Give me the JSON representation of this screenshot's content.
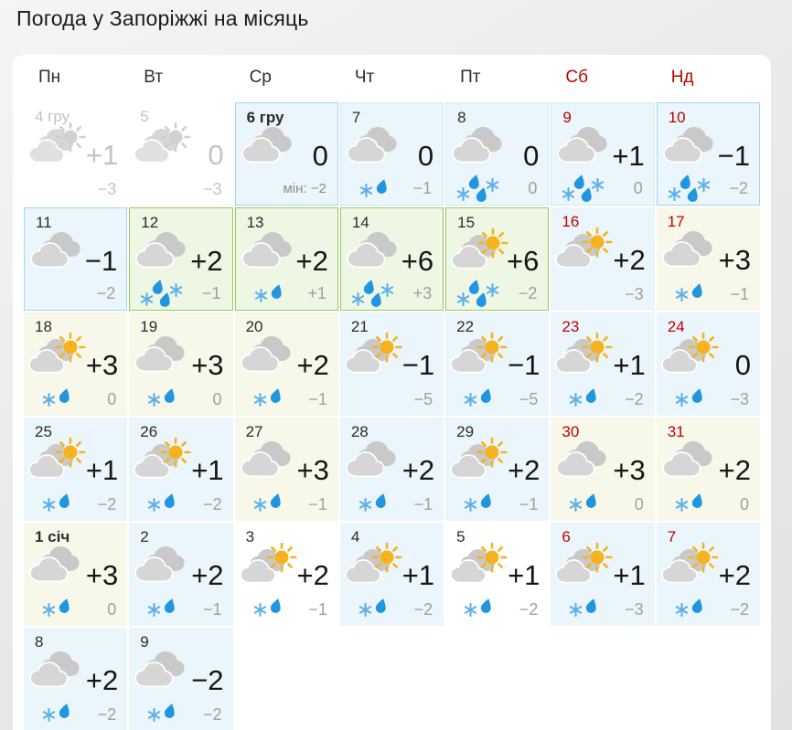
{
  "title": "Погода у Запоріжжі на місяць",
  "colors": {
    "red": "#c00000",
    "title_text": "#1b1b1b",
    "day_text": "#2b2b2b",
    "temp_text": "#151515",
    "night_text": "#9f9f9f",
    "past_text": "#c3c3c3",
    "cell_blue": "#eaf5fc",
    "cell_green": "#eef7e4",
    "cell_cream": "#f8f8ea",
    "bd_blue": "#9fd6ef",
    "bd_blue_light": "#cfe9f6",
    "bd_green": "#94ca5e",
    "sun_yellow": "#f6b31d",
    "sun_gray": "#d0d0d0",
    "cloud_back": "#c9c9c9",
    "cloud_front": "#d6d6d6",
    "cloud_back_past": "#d7d7d7",
    "cloud_front_past": "#e0e0e0",
    "snow_blue": "#5db0e8",
    "rain_blue": "#2196e0"
  },
  "calendar": {
    "weekdays": [
      {
        "label": "Пн",
        "weekend": false
      },
      {
        "label": "Вт",
        "weekend": false
      },
      {
        "label": "Ср",
        "weekend": false
      },
      {
        "label": "Чт",
        "weekend": false
      },
      {
        "label": "Пт",
        "weekend": false
      },
      {
        "label": "Сб",
        "weekend": true
      },
      {
        "label": "Нд",
        "weekend": true
      }
    ],
    "cells": [
      {
        "day": "4 гру",
        "past": true,
        "icon": "sun-cloud",
        "precip": "none",
        "temp_day": "+1",
        "temp_night": "−3",
        "bg": "white"
      },
      {
        "day": "5",
        "past": true,
        "icon": "sun-cloud",
        "precip": "none",
        "temp_day": "0",
        "temp_night": "−3",
        "bg": "white"
      },
      {
        "day": "6 гру",
        "bold": true,
        "icon": "clouds",
        "precip": "none",
        "temp_day": "0",
        "temp_night": "−2",
        "night_prefix": "мін: ",
        "bg": "blue",
        "border": "blue"
      },
      {
        "day": "7",
        "icon": "clouds",
        "precip": "light",
        "temp_day": "0",
        "temp_night": "−1",
        "bg": "blue",
        "border": "blue-light"
      },
      {
        "day": "8",
        "icon": "clouds",
        "precip": "heavy",
        "temp_day": "0",
        "temp_night": "0",
        "bg": "blue",
        "border": "blue-light"
      },
      {
        "day": "9",
        "weekend": true,
        "icon": "clouds",
        "precip": "heavy",
        "temp_day": "+1",
        "temp_night": "0",
        "bg": "blue",
        "border": "blue-light"
      },
      {
        "day": "10",
        "weekend": true,
        "icon": "clouds",
        "precip": "heavy",
        "temp_day": "−1",
        "temp_night": "−2",
        "bg": "blue",
        "border": "blue"
      },
      {
        "day": "11",
        "icon": "clouds",
        "precip": "none",
        "temp_day": "−1",
        "temp_night": "−2",
        "bg": "blue",
        "border": "blue"
      },
      {
        "day": "12",
        "icon": "clouds",
        "precip": "heavy",
        "temp_day": "+2",
        "temp_night": "−1",
        "bg": "green",
        "border": "green"
      },
      {
        "day": "13",
        "icon": "clouds",
        "precip": "light",
        "temp_day": "+2",
        "temp_night": "+1",
        "bg": "green",
        "border": "green"
      },
      {
        "day": "14",
        "icon": "clouds",
        "precip": "heavy",
        "temp_day": "+6",
        "temp_night": "+3",
        "bg": "green",
        "border": "green"
      },
      {
        "day": "15",
        "icon": "sun-cloud",
        "precip": "heavy",
        "temp_day": "+6",
        "temp_night": "−2",
        "bg": "green",
        "border": "green"
      },
      {
        "day": "16",
        "weekend": true,
        "icon": "sun-cloud",
        "precip": "none",
        "temp_day": "+2",
        "temp_night": "−3",
        "bg": "blue"
      },
      {
        "day": "17",
        "weekend": true,
        "icon": "clouds",
        "precip": "light",
        "temp_day": "+3",
        "temp_night": "−1",
        "bg": "cream"
      },
      {
        "day": "18",
        "icon": "sun-cloud",
        "precip": "light",
        "temp_day": "+3",
        "temp_night": "0",
        "bg": "cream"
      },
      {
        "day": "19",
        "icon": "clouds",
        "precip": "light",
        "temp_day": "+3",
        "temp_night": "0",
        "bg": "cream"
      },
      {
        "day": "20",
        "icon": "clouds",
        "precip": "light",
        "temp_day": "+2",
        "temp_night": "−1",
        "bg": "cream"
      },
      {
        "day": "21",
        "icon": "sun-cloud",
        "precip": "none",
        "temp_day": "−1",
        "temp_night": "−5",
        "bg": "blue"
      },
      {
        "day": "22",
        "icon": "sun-cloud",
        "precip": "light",
        "temp_day": "−1",
        "temp_night": "−5",
        "bg": "blue"
      },
      {
        "day": "23",
        "weekend": true,
        "icon": "sun-cloud",
        "precip": "light",
        "temp_day": "+1",
        "temp_night": "−2",
        "bg": "blue"
      },
      {
        "day": "24",
        "weekend": true,
        "icon": "sun-cloud",
        "precip": "light",
        "temp_day": "0",
        "temp_night": "−3",
        "bg": "blue"
      },
      {
        "day": "25",
        "icon": "sun-cloud",
        "precip": "light",
        "temp_day": "+1",
        "temp_night": "−2",
        "bg": "blue"
      },
      {
        "day": "26",
        "icon": "sun-cloud",
        "precip": "light",
        "temp_day": "+1",
        "temp_night": "−2",
        "bg": "blue"
      },
      {
        "day": "27",
        "icon": "clouds",
        "precip": "light",
        "temp_day": "+3",
        "temp_night": "−1",
        "bg": "cream"
      },
      {
        "day": "28",
        "icon": "clouds",
        "precip": "light",
        "temp_day": "+2",
        "temp_night": "−1",
        "bg": "blue"
      },
      {
        "day": "29",
        "icon": "sun-cloud",
        "precip": "light",
        "temp_day": "+2",
        "temp_night": "−1",
        "bg": "blue"
      },
      {
        "day": "30",
        "weekend": true,
        "icon": "clouds",
        "precip": "light",
        "temp_day": "+3",
        "temp_night": "0",
        "bg": "cream"
      },
      {
        "day": "31",
        "weekend": true,
        "icon": "clouds",
        "precip": "light",
        "temp_day": "+2",
        "temp_night": "0",
        "bg": "cream"
      },
      {
        "day": "1 січ",
        "bold": true,
        "icon": "clouds",
        "precip": "light",
        "temp_day": "+3",
        "temp_night": "0",
        "bg": "cream"
      },
      {
        "day": "2",
        "icon": "clouds",
        "precip": "light",
        "temp_day": "+2",
        "temp_night": "−1",
        "bg": "blue"
      },
      {
        "day": "3",
        "icon": "sun-cloud",
        "precip": "light",
        "temp_day": "+2",
        "temp_night": "−1",
        "bg": "white"
      },
      {
        "day": "4",
        "icon": "sun-cloud",
        "precip": "light",
        "temp_day": "+1",
        "temp_night": "−2",
        "bg": "blue"
      },
      {
        "day": "5",
        "icon": "sun-cloud",
        "precip": "light",
        "temp_day": "+1",
        "temp_night": "−2",
        "bg": "white"
      },
      {
        "day": "6",
        "weekend": true,
        "icon": "sun-cloud",
        "precip": "light",
        "temp_day": "+1",
        "temp_night": "−3",
        "bg": "blue"
      },
      {
        "day": "7",
        "weekend": true,
        "icon": "sun-cloud",
        "precip": "light",
        "temp_day": "+2",
        "temp_night": "−2",
        "bg": "blue"
      },
      {
        "day": "8",
        "icon": "clouds",
        "precip": "light",
        "temp_day": "+2",
        "temp_night": "−2",
        "bg": "blue"
      },
      {
        "day": "9",
        "icon": "clouds",
        "precip": "light",
        "temp_day": "−2",
        "temp_night": "−2",
        "bg": "blue"
      },
      {
        "empty": true
      },
      {
        "empty": true
      },
      {
        "empty": true
      },
      {
        "empty": true
      },
      {
        "empty": true
      }
    ]
  }
}
